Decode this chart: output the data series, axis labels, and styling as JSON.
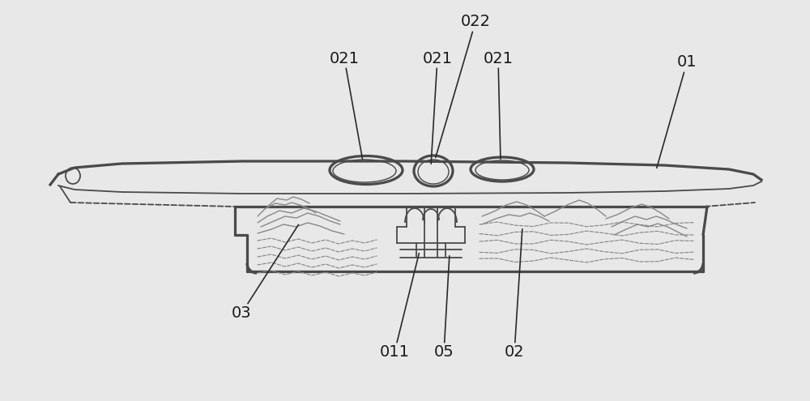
{
  "bg_color": "#e8e8e8",
  "line_color": "#4a4a4a",
  "line_color2": "#666666",
  "line_width": 1.3,
  "fig_width": 10.0,
  "fig_height": 4.95,
  "font_size": 14,
  "text_color": "#1a1a1a",
  "arrow_color": "#2a2a2a"
}
